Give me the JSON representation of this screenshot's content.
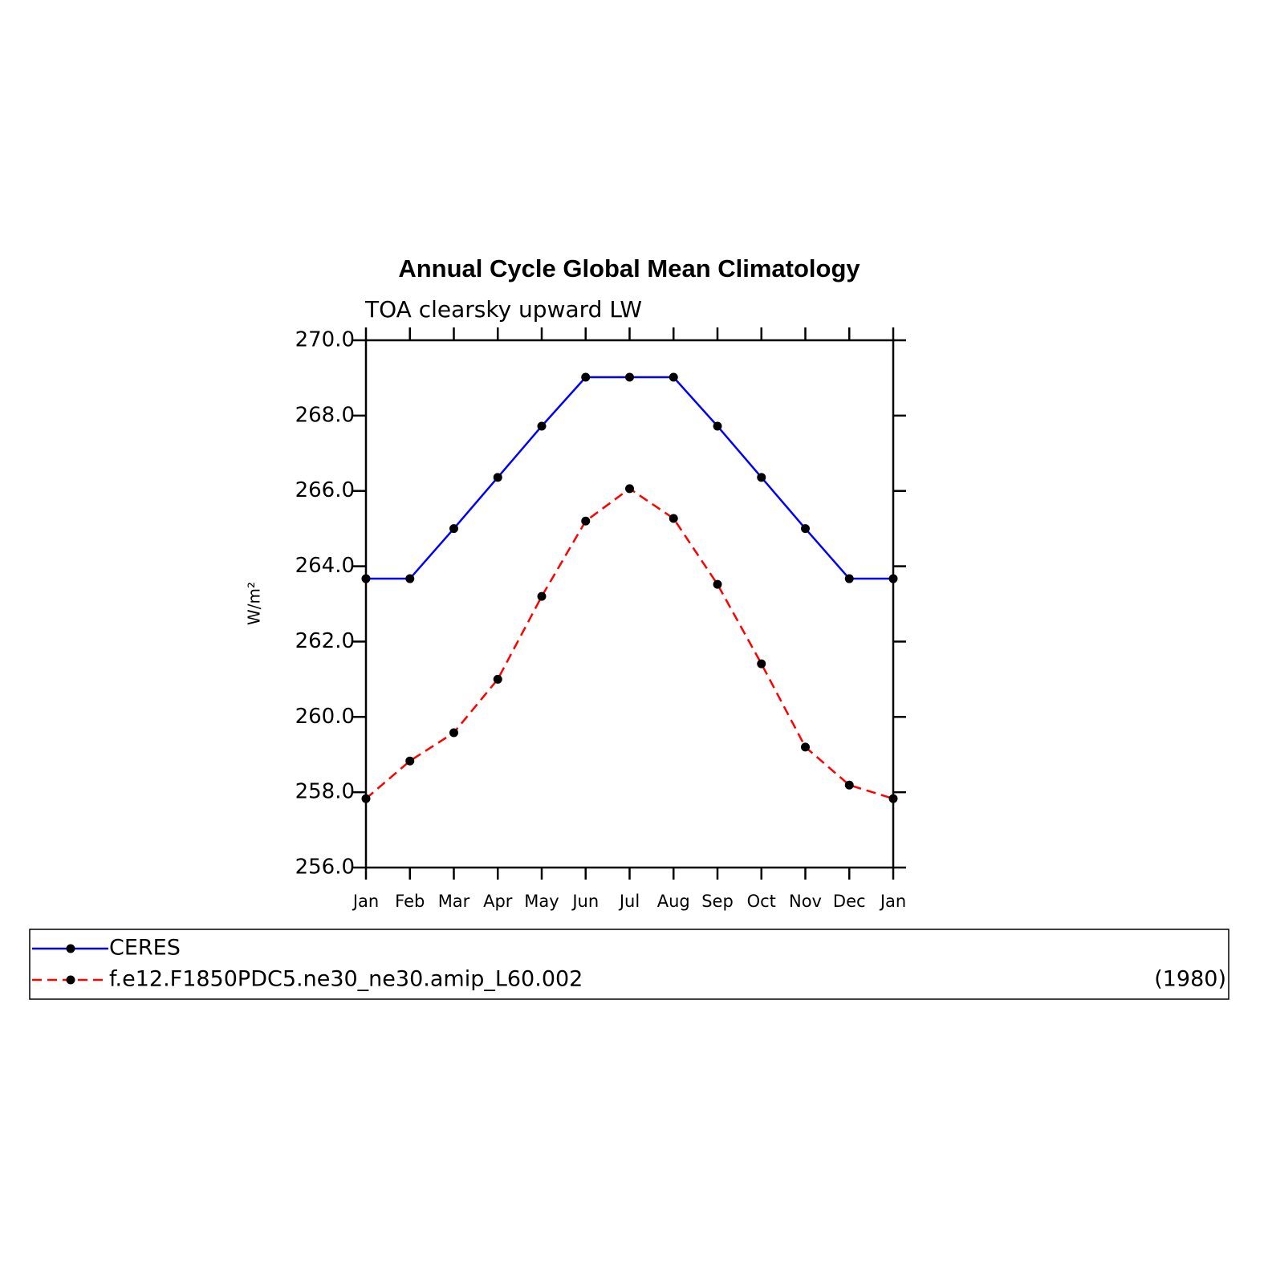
{
  "chart_data": {
    "type": "line",
    "title": "Annual Cycle Global Mean Climatology",
    "subtitle": "TOA clearsky upward LW",
    "y_label": "W/m²",
    "categories": [
      "Jan",
      "Feb",
      "Mar",
      "Apr",
      "May",
      "Jun",
      "Jul",
      "Aug",
      "Sep",
      "Oct",
      "Nov",
      "Dec",
      "Jan"
    ],
    "series": [
      {
        "name": "CERES",
        "color": "#0000ff",
        "dash": false,
        "values": [
          263.67,
          263.67,
          265.0,
          266.36,
          267.72,
          269.02,
          269.02,
          269.02,
          267.72,
          266.36,
          265.0,
          263.67,
          263.67
        ]
      },
      {
        "name": "f.e12.F1850PDC5.ne30_ne30.amip_L60.002",
        "color": "#ff0000",
        "dash": true,
        "values": [
          257.83,
          258.83,
          259.58,
          261.0,
          263.2,
          265.2,
          266.06,
          265.27,
          263.52,
          261.41,
          259.2,
          258.19,
          257.83
        ]
      }
    ],
    "legend_right_text": "(1980)",
    "ylim": [
      256,
      270
    ],
    "yticks": [
      {
        "value": 256,
        "label": "256.0"
      },
      {
        "value": 258,
        "label": "258.0"
      },
      {
        "value": 260,
        "label": "260.0"
      },
      {
        "value": 262,
        "label": "262.0"
      },
      {
        "value": 264,
        "label": "264.0"
      },
      {
        "value": 266,
        "label": "266.0"
      },
      {
        "value": 268,
        "label": "268.0"
      },
      {
        "value": 270,
        "label": "270.0"
      }
    ],
    "grid": false
  }
}
